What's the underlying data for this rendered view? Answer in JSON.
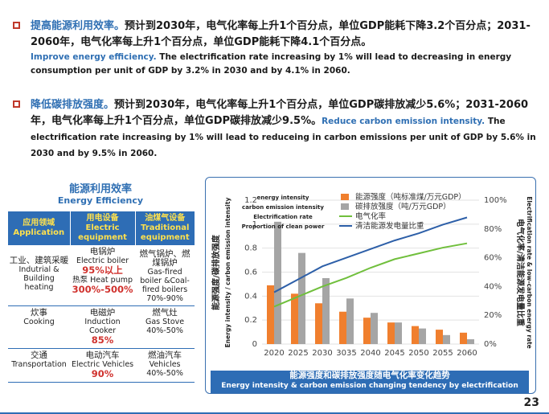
{
  "bullets": [
    {
      "head_zh": "提高能源利用效率。",
      "body_zh": "预计到2030年，电气化率每上升1个百分点，单位GDP能耗下降3.2个百分点；2031-2060年，电气化率每上升1个百分点，单位GDP能耗下降4.1个百分点。",
      "head_en": "Improve energy efficiency.",
      "body_en": " The electrification rate increasing by 1% will lead to decreasing in energy consumption per unit of GDP by 3.2% in 2030 and by 4.1% in 2060."
    },
    {
      "head_zh": "降低碳排放强度。",
      "body_zh": "预计到2030年，电气化率每上升1个百分点，单位GDP碳排放减少5.6%；2031-2060年，电气化率每上升1个百分点，单位GDP碳排放减少9.5%。",
      "head_en": "Reduce carbon emission intensity.",
      "body_en": " The electrification rate increasing by 1% will lead to reduceing in carbon emissions per unit of GDP by 5.6% in 2030 and by 9.5% in 2060."
    }
  ],
  "left_title": {
    "zh": "能源利用效率",
    "en": "Energy Efficiency"
  },
  "table": {
    "headers": [
      {
        "zh": "应用领域",
        "en": "Application"
      },
      {
        "zh": "用电设备",
        "en": "Electric equipment"
      },
      {
        "zh": "油煤气设备",
        "en": "Traditional equipment"
      }
    ],
    "rows": [
      {
        "app_zh": "工业、建筑采暖",
        "app_en": "Indutrial & Building heating",
        "elec_zh": "电锅炉",
        "elec_en": "Electric boiler",
        "elec_val1": "95%以上",
        "elec_zh2": "热泵 Heat pump",
        "elec_val2": "300%-500%",
        "trad_zh": "燃气锅炉、燃煤锅炉",
        "trad_en": "Gas-fired boiler &Coal-fired boilers",
        "trad_val": "70%-90%"
      },
      {
        "app_zh": "炊事",
        "app_en": "Cooking",
        "elec_zh": "电磁炉",
        "elec_en": "Induction Cooker",
        "elec_val1": "85%",
        "trad_zh": "燃气灶",
        "trad_en": "Gas Stove",
        "trad_val": "40%-50%"
      },
      {
        "app_zh": "交通",
        "app_en": "Transportation",
        "elec_zh": "电动汽车",
        "elec_en": "Electric Vehicles",
        "elec_val1": "90%",
        "trad_zh": "燃油汽车",
        "trad_en": "Vehicles",
        "trad_val": "40%-50%"
      }
    ]
  },
  "chart_data": {
    "type": "bar",
    "categories": [
      "2020",
      "2025",
      "2030",
      "3035",
      "2040",
      "2045",
      "2050",
      "2055",
      "2060"
    ],
    "y_left": {
      "label_zh": "能源强度/碳排放强度",
      "label_en": "Energy intensity / carbon emission intensity",
      "ylim": [
        0,
        1.2
      ],
      "ticks": [
        "0",
        "0.2",
        "0.4",
        "0.6",
        "0.8",
        "1",
        "1.2"
      ]
    },
    "y_right": {
      "label_zh": "电气化率/清洁能源发电量比重",
      "label_en": "Electrification rate & low-carbon energy rate",
      "ylim": [
        0,
        100
      ],
      "ticks": [
        "0%",
        "20%",
        "40%",
        "60%",
        "80%",
        "100%"
      ]
    },
    "series": [
      {
        "name": "能源强度（吨标准煤/万元GDP）",
        "name_en": "energy intensity",
        "kind": "bar",
        "axis": "left",
        "color": "#f07f2e",
        "values": [
          0.49,
          0.42,
          0.34,
          0.27,
          0.22,
          0.18,
          0.15,
          0.12,
          0.095
        ]
      },
      {
        "name": "碳排放强度（吨/万元GDP）",
        "name_en": "carbon emission intensity",
        "kind": "bar",
        "axis": "left",
        "color": "#a5a5a5",
        "values": [
          1.02,
          0.76,
          0.55,
          0.38,
          0.26,
          0.18,
          0.13,
          0.075,
          0.04
        ]
      },
      {
        "name": "电气化率",
        "name_en": "Electrification rate",
        "kind": "line",
        "axis": "right",
        "color": "#70bf3c",
        "values": [
          26,
          33,
          40,
          46,
          53,
          59,
          63,
          67,
          70
        ]
      },
      {
        "name": "清洁能源发电量比重",
        "name_en": "Proportion of clean power",
        "kind": "line",
        "axis": "right",
        "color": "#2d5fa8",
        "values": [
          36,
          45,
          54,
          60,
          66,
          72,
          77,
          83,
          88
        ]
      }
    ],
    "grid": true,
    "legend": "top-right"
  },
  "caption": {
    "zh": "能源强度和碳排放强度随电气化率变化趋势",
    "en": "Energy intensity & carbon emission changing tendency by electrification"
  },
  "page_number": "23"
}
